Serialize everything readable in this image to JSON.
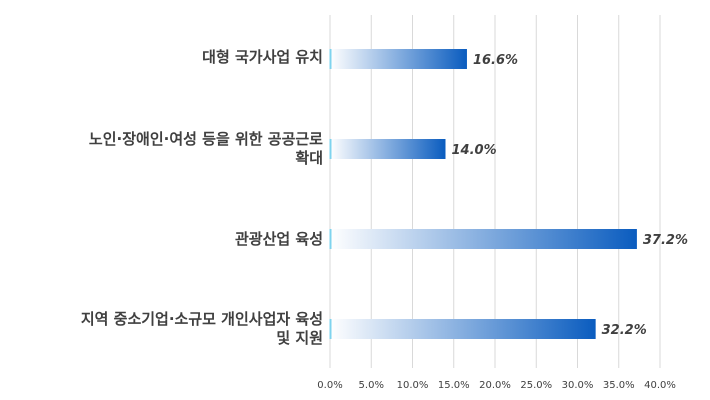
{
  "chart_data": {
    "type": "bar",
    "orientation": "horizontal",
    "categories": [
      "대형 국가사업 유치",
      "노인·장애인·여성 등을 위한 공공근로\n확대",
      "관광산업 육성",
      "지역 중소기업·소규모 개인사업자 육성\n및 지원"
    ],
    "values": [
      16.6,
      14.0,
      37.2,
      32.2
    ],
    "value_labels": [
      "16.6%",
      "14.0%",
      "37.2%",
      "32.2%"
    ],
    "xlim": [
      0,
      40
    ],
    "x_ticks": [
      "0.0%",
      "5.0%",
      "10.0%",
      "15.0%",
      "20.0%",
      "25.0%",
      "30.0%",
      "35.0%",
      "40.0%"
    ],
    "grid": true,
    "legend": "none",
    "colors": {
      "bar_end": "#0a5cbf",
      "bar_start": "#ffffff",
      "grid": "#d9d9d9",
      "text": "#404040"
    }
  }
}
